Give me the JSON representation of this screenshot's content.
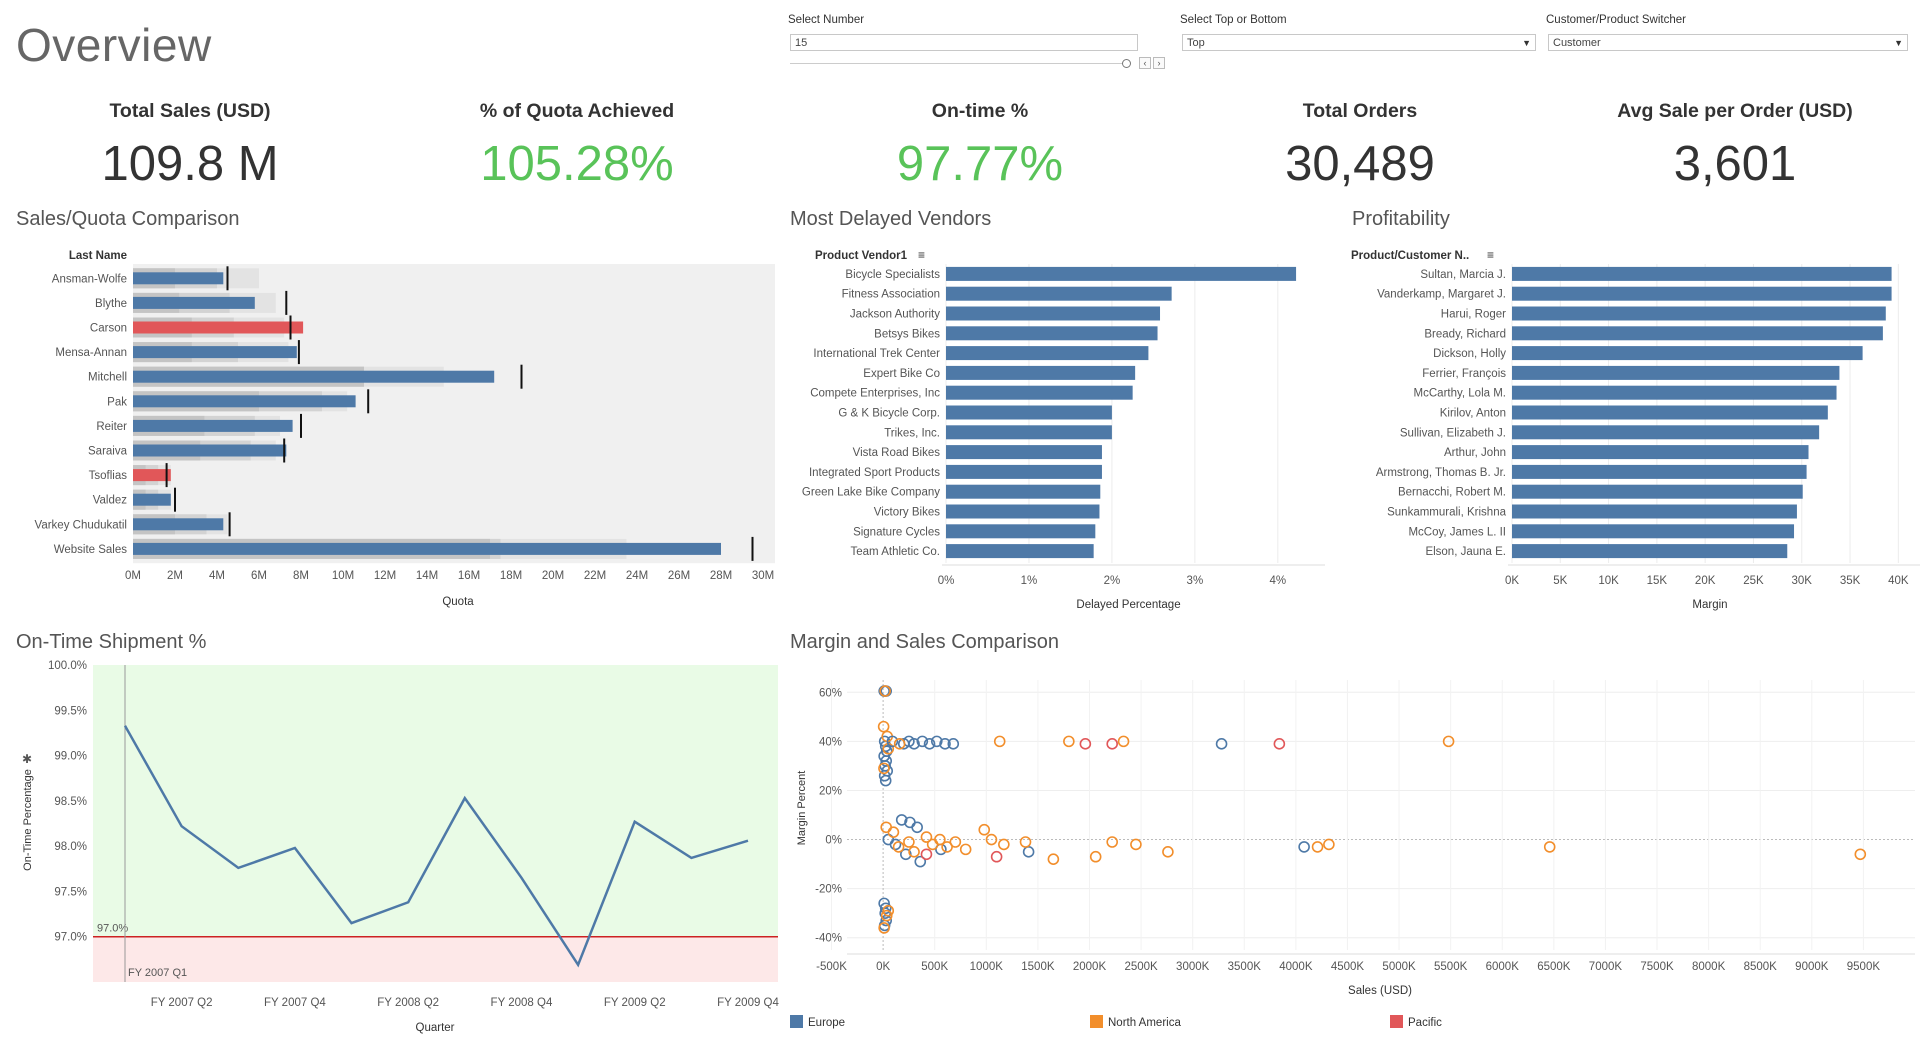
{
  "page": {
    "title": "Overview"
  },
  "controls": {
    "number": {
      "label": "Select Number",
      "value": "15"
    },
    "topbottom": {
      "label": "Select Top or Bottom",
      "value": "Top"
    },
    "switcher": {
      "label": "Customer/Product Switcher",
      "value": "Customer"
    },
    "nav_prev": "‹",
    "nav_next": "›"
  },
  "kpis": [
    {
      "title": "Total Sales (USD)",
      "value": "109.8 M",
      "green": false
    },
    {
      "title": "% of Quota Achieved",
      "value": "105.28%",
      "green": true
    },
    {
      "title": "On-time %",
      "value": "97.77%",
      "green": true
    },
    {
      "title": "Total Orders",
      "value": "30,489",
      "green": false
    },
    {
      "title": "Avg Sale per Order (USD)",
      "value": "3,601",
      "green": false
    }
  ],
  "sections": {
    "sales_quota": "Sales/Quota Comparison",
    "delayed": "Most Delayed Vendors",
    "profit": "Profitability",
    "ontime": "On-Time Shipment %",
    "margin_sales": "Margin and Sales Comparison"
  },
  "colors": {
    "blue": "#4e79a7",
    "red": "#e15759",
    "orange": "#f28e2b",
    "green_band": "#e9fbe6",
    "red_band": "#fde8e8",
    "red_line": "#cc2222"
  },
  "chart_data": [
    {
      "id": "sales_quota",
      "type": "bar",
      "title": "Sales/Quota Comparison",
      "row_header": "Last Name",
      "xlabel": "Quota",
      "xlim": [
        0,
        30
      ],
      "xticks": [
        0,
        2,
        4,
        6,
        8,
        10,
        12,
        14,
        16,
        18,
        20,
        22,
        24,
        26,
        28,
        30
      ],
      "tick_suffix": "M",
      "categories": [
        "Ansman-Wolfe",
        "Blythe",
        "Carson",
        "Mensa-Annan",
        "Mitchell",
        "Pak",
        "Reiter",
        "Saraiva",
        "Tsoflias",
        "Valdez",
        "Varkey Chudukatil",
        "Website Sales"
      ],
      "sales": [
        4.3,
        5.8,
        8.1,
        7.8,
        17.2,
        10.6,
        7.6,
        7.3,
        1.8,
        1.8,
        4.3,
        28.0
      ],
      "quota": [
        4.5,
        7.3,
        7.5,
        7.9,
        18.5,
        11.2,
        8.0,
        7.2,
        1.6,
        2.0,
        4.6,
        29.5
      ],
      "highlight": [
        false,
        false,
        true,
        false,
        false,
        false,
        false,
        false,
        true,
        false,
        false,
        false
      ],
      "band_light": [
        6.0,
        6.8,
        7.2,
        7.4,
        14.8,
        10.2,
        7.0,
        6.8,
        1.8,
        1.8,
        4.5,
        23.5
      ],
      "band_mid": [
        4.0,
        4.6,
        4.8,
        5.0,
        11.0,
        9.0,
        5.8,
        5.6,
        1.2,
        1.2,
        3.5,
        17.5
      ],
      "band_dark": [
        2.0,
        2.2,
        2.8,
        2.8,
        11.0,
        6.0,
        3.4,
        3.2,
        0.6,
        0.6,
        2.0,
        17.0
      ]
    },
    {
      "id": "delayed",
      "type": "bar",
      "title": "Most Delayed Vendors",
      "row_header": "Product Vendor1",
      "xlabel": "Delayed Percentage",
      "xlim": [
        0,
        4.4
      ],
      "xticks": [
        0,
        1,
        2,
        3,
        4
      ],
      "tick_labels": [
        "0%",
        "1%",
        "2%",
        "3%",
        "4%"
      ],
      "categories": [
        "Bicycle Specialists",
        "Fitness Association",
        "Jackson Authority",
        "Betsys Bikes",
        "International Trek Center",
        "Expert Bike Co",
        "Compete Enterprises, Inc",
        "G & K Bicycle Corp.",
        "Trikes, Inc.",
        "Vista Road Bikes",
        "Integrated Sport Products",
        "Green Lake Bike Company",
        "Victory Bikes",
        "Signature Cycles",
        "Team Athletic Co."
      ],
      "values": [
        4.22,
        2.72,
        2.58,
        2.55,
        2.44,
        2.28,
        2.25,
        2.0,
        2.0,
        1.88,
        1.88,
        1.86,
        1.85,
        1.8,
        1.78
      ]
    },
    {
      "id": "profit",
      "type": "bar",
      "title": "Profitability",
      "row_header": "Product/Customer N..",
      "xlabel": "Margin",
      "xlim": [
        0,
        41000
      ],
      "xticks": [
        0,
        5000,
        10000,
        15000,
        20000,
        25000,
        30000,
        35000,
        40000
      ],
      "tick_labels": [
        "0K",
        "5K",
        "10K",
        "15K",
        "20K",
        "25K",
        "30K",
        "35K",
        "40K"
      ],
      "categories": [
        "Sultan, Marcia J.",
        "Vanderkamp, Margaret J.",
        "Harui, Roger",
        "Bready, Richard",
        "Dickson, Holly",
        "Ferrier, François",
        "McCarthy, Lola M.",
        "Kirilov, Anton",
        "Sullivan, Elizabeth J.",
        "Arthur, John",
        "Armstrong, Thomas B. Jr.",
        "Bernacchi, Robert M.",
        "Sunkammurali, Krishna",
        "McCoy, James L. II",
        "Elson, Jauna E."
      ],
      "values": [
        39300,
        39300,
        38700,
        38400,
        36300,
        33900,
        33600,
        32700,
        31800,
        30700,
        30500,
        30100,
        29500,
        29200,
        28500
      ]
    },
    {
      "id": "ontime",
      "type": "line",
      "title": "On-Time Shipment %",
      "xlabel": "Quarter",
      "ylabel": "On-Time Percentage",
      "ylim": [
        96.5,
        100.0
      ],
      "yticks": [
        97.0,
        97.5,
        98.0,
        98.5,
        99.0,
        99.5,
        100.0
      ],
      "tick_labels": [
        "97.0%",
        "97.5%",
        "98.0%",
        "98.5%",
        "99.0%",
        "99.5%",
        "100.0%"
      ],
      "x_labels": [
        "FY 2007 Q2",
        "FY 2007 Q4",
        "FY 2008 Q2",
        "FY 2008 Q4",
        "FY 2009 Q2",
        "FY 2009 Q4"
      ],
      "values": [
        99.33,
        98.22,
        97.76,
        97.98,
        97.15,
        97.38,
        98.53,
        97.65,
        96.69,
        98.27,
        97.87,
        98.06
      ],
      "threshold": 97.0,
      "threshold_label": "97.0%",
      "ref_line_label": "FY 2007 Q1"
    },
    {
      "id": "margin_sales",
      "type": "scatter",
      "title": "Margin and Sales Comparison",
      "xlabel": "Sales (USD)",
      "ylabel": "Margin Percent",
      "xlim": [
        -350000,
        10000000
      ],
      "ylim": [
        -45,
        65
      ],
      "xticks": [
        -500000,
        0,
        500000,
        1000000,
        1500000,
        2000000,
        2500000,
        3000000,
        3500000,
        4000000,
        4500000,
        5000000,
        5500000,
        6000000,
        6500000,
        7000000,
        7500000,
        8000000,
        8500000,
        9000000,
        9500000
      ],
      "xtick_labels": [
        "-500K",
        "0K",
        "500K",
        "1000K",
        "1500K",
        "2000K",
        "2500K",
        "3000K",
        "3500K",
        "4000K",
        "4500K",
        "5000K",
        "5500K",
        "6000K",
        "6500K",
        "7000K",
        "7500K",
        "8000K",
        "8500K",
        "9000K",
        "9500K"
      ],
      "yticks": [
        -40,
        -20,
        0,
        20,
        40,
        60
      ],
      "ytick_labels": [
        "-40%",
        "-20%",
        "0%",
        "20%",
        "40%",
        "60%"
      ],
      "legend": [
        {
          "name": "Europe",
          "color": "#4e79a7"
        },
        {
          "name": "North America",
          "color": "#f28e2b"
        },
        {
          "name": "Pacific",
          "color": "#e15759"
        }
      ],
      "points": [
        {
          "s": "Europe",
          "x": 10000,
          "y": 60.5
        },
        {
          "s": "Europe",
          "x": 30000,
          "y": 60.5
        },
        {
          "s": "North America",
          "x": 20000,
          "y": 60.5
        },
        {
          "s": "Europe",
          "x": 15000,
          "y": 40
        },
        {
          "s": "Europe",
          "x": 25000,
          "y": 38
        },
        {
          "s": "Europe",
          "x": 35000,
          "y": 36
        },
        {
          "s": "Europe",
          "x": 10000,
          "y": 34
        },
        {
          "s": "Europe",
          "x": 30000,
          "y": 32
        },
        {
          "s": "Europe",
          "x": 20000,
          "y": 30
        },
        {
          "s": "Europe",
          "x": 40000,
          "y": 28
        },
        {
          "s": "Europe",
          "x": 15000,
          "y": 26
        },
        {
          "s": "Europe",
          "x": 25000,
          "y": 24
        },
        {
          "s": "North America",
          "x": 5000,
          "y": 46
        },
        {
          "s": "North America",
          "x": 40000,
          "y": 42
        },
        {
          "s": "North America",
          "x": 50000,
          "y": 37
        },
        {
          "s": "North America",
          "x": 8000,
          "y": 29
        },
        {
          "s": "Europe",
          "x": 90000,
          "y": 40
        },
        {
          "s": "Europe",
          "x": 200000,
          "y": 39
        },
        {
          "s": "Europe",
          "x": 250000,
          "y": 40
        },
        {
          "s": "Europe",
          "x": 300000,
          "y": 39
        },
        {
          "s": "Europe",
          "x": 380000,
          "y": 40
        },
        {
          "s": "Europe",
          "x": 450000,
          "y": 39
        },
        {
          "s": "Europe",
          "x": 520000,
          "y": 40
        },
        {
          "s": "Europe",
          "x": 600000,
          "y": 39
        },
        {
          "s": "Europe",
          "x": 680000,
          "y": 39
        },
        {
          "s": "Europe",
          "x": 3280000,
          "y": 39
        },
        {
          "s": "North America",
          "x": 160000,
          "y": 39
        },
        {
          "s": "North America",
          "x": 1130000,
          "y": 40
        },
        {
          "s": "North America",
          "x": 1800000,
          "y": 40
        },
        {
          "s": "North America",
          "x": 2330000,
          "y": 40
        },
        {
          "s": "North America",
          "x": 5480000,
          "y": 40
        },
        {
          "s": "Pacific",
          "x": 1960000,
          "y": 39
        },
        {
          "s": "Pacific",
          "x": 2220000,
          "y": 39
        },
        {
          "s": "Pacific",
          "x": 3840000,
          "y": 39
        },
        {
          "s": "Europe",
          "x": 180000,
          "y": 8
        },
        {
          "s": "Europe",
          "x": 260000,
          "y": 7
        },
        {
          "s": "Europe",
          "x": 330000,
          "y": 5
        },
        {
          "s": "Europe",
          "x": 50000,
          "y": 0
        },
        {
          "s": "Europe",
          "x": 120000,
          "y": -2
        },
        {
          "s": "Europe",
          "x": 220000,
          "y": -6
        },
        {
          "s": "Europe",
          "x": 360000,
          "y": -9
        },
        {
          "s": "Europe",
          "x": 560000,
          "y": -4
        },
        {
          "s": "Europe",
          "x": 1410000,
          "y": -5
        },
        {
          "s": "Europe",
          "x": 4080000,
          "y": -3
        },
        {
          "s": "North America",
          "x": 30000,
          "y": 5
        },
        {
          "s": "North America",
          "x": 100000,
          "y": 3
        },
        {
          "s": "North America",
          "x": 150000,
          "y": -3
        },
        {
          "s": "North America",
          "x": 250000,
          "y": -1
        },
        {
          "s": "North America",
          "x": 300000,
          "y": -5
        },
        {
          "s": "North America",
          "x": 420000,
          "y": 1
        },
        {
          "s": "North America",
          "x": 480000,
          "y": -2
        },
        {
          "s": "North America",
          "x": 550000,
          "y": 0
        },
        {
          "s": "North America",
          "x": 620000,
          "y": -3
        },
        {
          "s": "North America",
          "x": 700000,
          "y": -1
        },
        {
          "s": "North America",
          "x": 800000,
          "y": -4
        },
        {
          "s": "North America",
          "x": 980000,
          "y": 4
        },
        {
          "s": "North America",
          "x": 1050000,
          "y": 0
        },
        {
          "s": "North America",
          "x": 1170000,
          "y": -2
        },
        {
          "s": "North America",
          "x": 1380000,
          "y": -1
        },
        {
          "s": "North America",
          "x": 1650000,
          "y": -8
        },
        {
          "s": "North America",
          "x": 2060000,
          "y": -7
        },
        {
          "s": "North America",
          "x": 2220000,
          "y": -1
        },
        {
          "s": "North America",
          "x": 2450000,
          "y": -2
        },
        {
          "s": "North America",
          "x": 2760000,
          "y": -5
        },
        {
          "s": "North America",
          "x": 4210000,
          "y": -3
        },
        {
          "s": "North America",
          "x": 4320000,
          "y": -2
        },
        {
          "s": "North America",
          "x": 6460000,
          "y": -3
        },
        {
          "s": "North America",
          "x": 9470000,
          "y": -6
        },
        {
          "s": "Pacific",
          "x": 1100000,
          "y": -7
        },
        {
          "s": "Pacific",
          "x": 420000,
          "y": -6
        },
        {
          "s": "Europe",
          "x": 10000,
          "y": -26
        },
        {
          "s": "Europe",
          "x": 20000,
          "y": -30
        },
        {
          "s": "Europe",
          "x": 30000,
          "y": -33
        },
        {
          "s": "Europe",
          "x": 15000,
          "y": -35
        },
        {
          "s": "Europe",
          "x": 25000,
          "y": -28
        },
        {
          "s": "North America",
          "x": 10000,
          "y": -36
        },
        {
          "s": "North America",
          "x": 35000,
          "y": -31
        },
        {
          "s": "North America",
          "x": 50000,
          "y": -29
        }
      ]
    }
  ]
}
